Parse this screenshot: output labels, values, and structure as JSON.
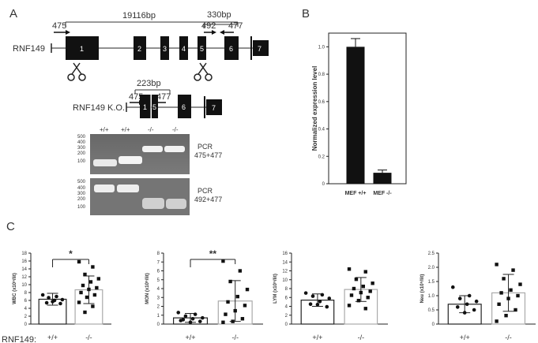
{
  "panels": {
    "a": "A",
    "b": "B",
    "c": "C"
  },
  "gene": {
    "name": "RNF149",
    "span_total": "19116bp",
    "span_short": "330bp",
    "primer_475": "475",
    "primer_492": "492",
    "primer_477": "477",
    "exons": [
      "1",
      "2",
      "3",
      "4",
      "5",
      "6",
      "7"
    ]
  },
  "ko": {
    "name": "RNF149 K.O.",
    "span": "223bp",
    "primer_475": "475",
    "primer_477": "477",
    "exons": [
      "1",
      "5",
      "6",
      "7"
    ]
  },
  "gel": {
    "lanes": [
      "+/+",
      "+/+",
      "-/-",
      "-/-"
    ],
    "ladder": [
      "500",
      "400",
      "300",
      "200",
      "100"
    ],
    "gel1_label_line1": "PCR",
    "gel1_label_line2": "475+477",
    "gel2_label_line1": "PCR",
    "gel2_label_line2": "492+477"
  },
  "chart_data": [
    {
      "type": "bar",
      "panel": "B",
      "categories": [
        "MEF +/+",
        "MEF -/-"
      ],
      "values": [
        1.0,
        0.08
      ],
      "errors": [
        0.06,
        0.02
      ],
      "ylabel": "Normalized expression level",
      "yticks": [
        "0",
        "0.2",
        "0.4",
        "0.6",
        "0.8",
        "1.0"
      ],
      "ylim": [
        0,
        1.1
      ]
    },
    {
      "type": "bar",
      "panel": "C",
      "categories": [
        "+/+",
        "-/-"
      ],
      "values": [
        6.3,
        8.7
      ],
      "errors": [
        1.5,
        3.5
      ],
      "ylabel": "WBC (x10⁹/lit)",
      "yticks": [
        "0",
        "2",
        "4",
        "6",
        "8",
        "10",
        "12",
        "14",
        "16",
        "18"
      ],
      "ylim": [
        0,
        18
      ],
      "significance": "*",
      "points": [
        [
          7.4,
          7.0,
          6.7,
          6.2,
          6.0,
          5.4,
          5.2,
          5.7
        ],
        [
          15.8,
          14.5,
          12.6,
          11.5,
          10.7,
          9.8,
          9.2,
          8.8,
          8.0,
          7.4,
          6.8,
          5.5,
          4.5,
          3.0
        ]
      ]
    },
    {
      "type": "bar",
      "panel": "C",
      "categories": [
        "+/+",
        "-/-"
      ],
      "values": [
        0.7,
        2.6
      ],
      "errors": [
        0.5,
        2.3
      ],
      "ylabel": "MON (x10⁹/lit)",
      "yticks": [
        "0",
        "1",
        "2",
        "3",
        "4",
        "5",
        "6",
        "7",
        "8"
      ],
      "ylim": [
        0,
        8
      ],
      "significance": "**",
      "points": [
        [
          1.3,
          1.1,
          0.9,
          0.7,
          0.6,
          0.5,
          0.3,
          0.2,
          0.4
        ],
        [
          7.1,
          6.0,
          4.8,
          3.9,
          3.1,
          2.5,
          2.1,
          1.5,
          1.1,
          0.6,
          0.3,
          0.2
        ]
      ]
    },
    {
      "type": "bar",
      "panel": "C",
      "categories": [
        "+/+",
        "-/-"
      ],
      "values": [
        5.4,
        7.8
      ],
      "errors": [
        1.4,
        2.7
      ],
      "ylabel": "LYM (x10⁹/lit)",
      "yticks": [
        "0",
        "2",
        "4",
        "6",
        "8",
        "10",
        "12",
        "14",
        "16"
      ],
      "ylim": [
        0,
        16
      ],
      "points": [
        [
          7.0,
          6.6,
          6.3,
          5.8,
          5.1,
          4.5,
          3.9,
          4.4
        ],
        [
          12.4,
          11.8,
          10.1,
          9.2,
          8.5,
          8.0,
          7.4,
          7.1,
          6.5,
          6.0,
          5.3,
          4.2,
          3.5
        ]
      ]
    },
    {
      "type": "bar",
      "panel": "C",
      "categories": [
        "+/+",
        "-/-"
      ],
      "values": [
        0.7,
        1.1
      ],
      "errors": [
        0.3,
        0.65
      ],
      "ylabel": "Neu (x10⁹/lit)",
      "yticks": [
        "0",
        "0.5",
        "1.0",
        "1.5",
        "2.0",
        "2.5"
      ],
      "ylim": [
        0,
        2.5
      ],
      "points": [
        [
          1.3,
          1.0,
          0.9,
          0.8,
          0.7,
          0.6,
          0.5,
          0.4
        ],
        [
          2.1,
          1.9,
          1.6,
          1.4,
          1.2,
          1.1,
          1.0,
          0.9,
          0.7,
          0.5,
          0.3,
          0.1
        ]
      ]
    }
  ],
  "genotype_row_label": "RNF149:"
}
